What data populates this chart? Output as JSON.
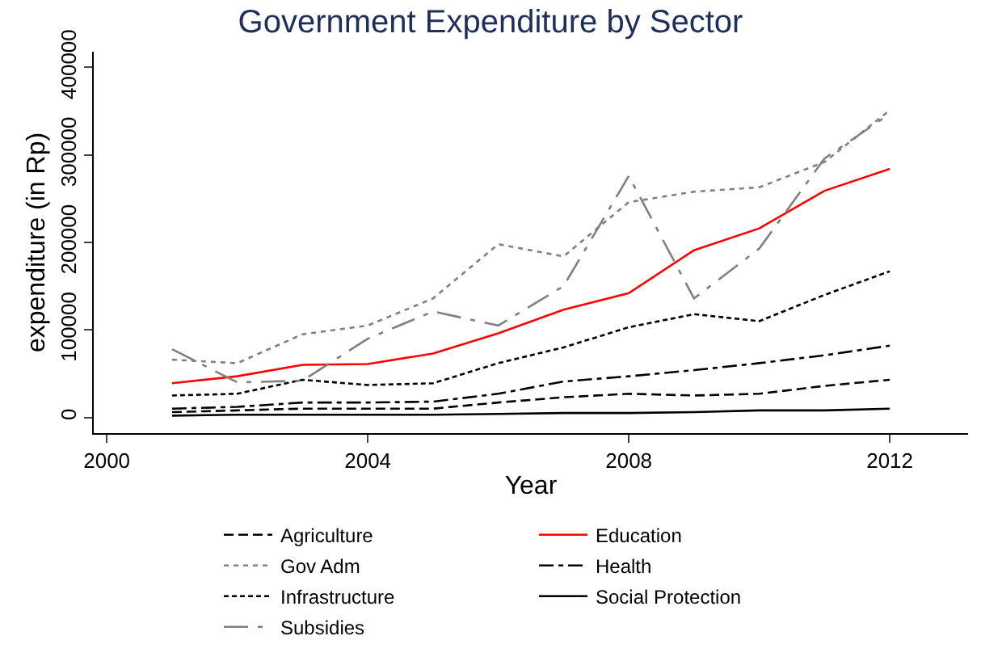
{
  "chart_data": {
    "type": "line",
    "title": "Government Expenditure by Sector",
    "xlabel": "Year",
    "ylabel": "expenditure (in Rp)",
    "x": [
      2001,
      2002,
      2003,
      2004,
      2005,
      2006,
      2007,
      2008,
      2009,
      2010,
      2011,
      2012
    ],
    "xlim": [
      1999.8,
      2013.2
    ],
    "xticks": [
      2000,
      2004,
      2008,
      2012
    ],
    "ylim": [
      -18000,
      418000
    ],
    "yticks": [
      0,
      100000,
      200000,
      300000,
      400000
    ],
    "legend": "bottom",
    "marker": "none",
    "series": [
      {
        "name": "Agriculture",
        "color": "#000000",
        "line_style": "longdash",
        "values": [
          6000,
          8000,
          10000,
          10000,
          10000,
          17000,
          23000,
          27000,
          25000,
          27000,
          36000,
          43000
        ]
      },
      {
        "name": "Education",
        "color": "#ff0000",
        "line_style": "solid",
        "values": [
          39000,
          47000,
          60000,
          61000,
          73000,
          96000,
          123000,
          142000,
          191000,
          216000,
          259000,
          284000
        ]
      },
      {
        "name": "Gov Adm",
        "color": "#808080",
        "line_style": "dotted",
        "values": [
          66000,
          62000,
          95000,
          105000,
          136000,
          198000,
          184000,
          246000,
          258000,
          263000,
          292000,
          351000
        ]
      },
      {
        "name": "Health",
        "color": "#000000",
        "line_style": "dashdot",
        "values": [
          10000,
          12000,
          17000,
          17000,
          18000,
          27000,
          41000,
          47000,
          54000,
          62000,
          71000,
          82000
        ]
      },
      {
        "name": "Infrastructure",
        "color": "#000000",
        "line_style": "dashed",
        "values": [
          25000,
          27000,
          43000,
          37000,
          39000,
          62000,
          80000,
          103000,
          118000,
          110000,
          140000,
          167000
        ]
      },
      {
        "name": "Social Protection",
        "color": "#000000",
        "line_style": "solid",
        "values": [
          2000,
          3000,
          3000,
          3000,
          3000,
          4000,
          5000,
          5000,
          6000,
          8000,
          8000,
          10000
        ]
      },
      {
        "name": "Subsidies",
        "color": "#808080",
        "line_style": "longdashdot",
        "values": [
          78000,
          40000,
          42000,
          90000,
          121000,
          105000,
          150000,
          276000,
          136000,
          193000,
          296000,
          347000
        ]
      }
    ]
  }
}
